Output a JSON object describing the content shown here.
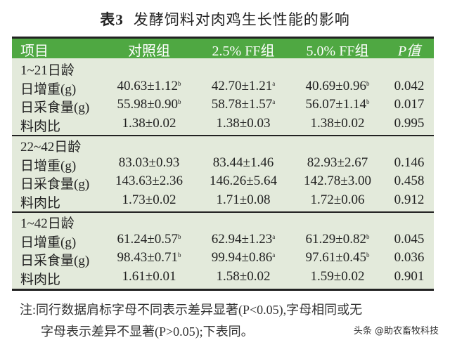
{
  "title": {
    "label": "表3",
    "text": "发酵饲料对肉鸡生长性能的影响"
  },
  "header": [
    "项目",
    "对照组",
    "2.5% FF组",
    "5.0% FF组",
    "P值"
  ],
  "sections": [
    {
      "label": "1~21日龄",
      "rows": [
        {
          "item": "日增重(g)",
          "cells": [
            {
              "v": "40.63±1.12",
              "s": "b"
            },
            {
              "v": "42.70±1.21",
              "s": "a"
            },
            {
              "v": "40.69±0.96",
              "s": "b"
            }
          ],
          "p": "0.042"
        },
        {
          "item": "日采食量(g)",
          "cells": [
            {
              "v": "55.98±0.90",
              "s": "b"
            },
            {
              "v": "58.78±1.57",
              "s": "a"
            },
            {
              "v": "56.07±1.14",
              "s": "b"
            }
          ],
          "p": "0.017"
        },
        {
          "item": "料肉比",
          "cells": [
            {
              "v": "1.38±0.02",
              "s": ""
            },
            {
              "v": "1.38±0.03",
              "s": ""
            },
            {
              "v": "1.38±0.02",
              "s": ""
            }
          ],
          "p": "0.995"
        }
      ]
    },
    {
      "label": "22~42日龄",
      "rows": [
        {
          "item": "日增重(g)",
          "cells": [
            {
              "v": "83.03±0.93",
              "s": ""
            },
            {
              "v": "83.44±1.46",
              "s": ""
            },
            {
              "v": "82.93±2.67",
              "s": ""
            }
          ],
          "p": "0.146"
        },
        {
          "item": "日采食量(g)",
          "cells": [
            {
              "v": "143.63±2.36",
              "s": ""
            },
            {
              "v": "146.26±5.64",
              "s": ""
            },
            {
              "v": "142.78±3.00",
              "s": ""
            }
          ],
          "p": "0.458"
        },
        {
          "item": "料肉比",
          "cells": [
            {
              "v": "1.73±0.02",
              "s": ""
            },
            {
              "v": "1.71±0.08",
              "s": ""
            },
            {
              "v": "1.72±0.06",
              "s": ""
            }
          ],
          "p": "0.912"
        }
      ]
    },
    {
      "label": "1~42日龄",
      "rows": [
        {
          "item": "日增重(g)",
          "cells": [
            {
              "v": "61.24±0.57",
              "s": "b"
            },
            {
              "v": "62.94±1.23",
              "s": "a"
            },
            {
              "v": "61.29±0.82",
              "s": "b"
            }
          ],
          "p": "0.045"
        },
        {
          "item": "日采食量(g)",
          "cells": [
            {
              "v": "98.43±0.71",
              "s": "b"
            },
            {
              "v": "99.94±0.86",
              "s": "a"
            },
            {
              "v": "97.61±0.45",
              "s": "b"
            }
          ],
          "p": "0.036"
        },
        {
          "item": "料肉比",
          "cells": [
            {
              "v": "1.61±0.01",
              "s": ""
            },
            {
              "v": "1.58±0.02",
              "s": ""
            },
            {
              "v": "1.59±0.02",
              "s": ""
            }
          ],
          "p": "0.901"
        }
      ]
    }
  ],
  "note": {
    "line1": "注:同行数据肩标字母不同表示差异显著(P<0.05),字母相同或无",
    "line2": "字母表示差异不显著(P>0.05);下表同。"
  },
  "watermark": "头条 @助农畜牧科技",
  "colors": {
    "header_bg": "#4fa842",
    "body_bg": "#e3eadb"
  }
}
